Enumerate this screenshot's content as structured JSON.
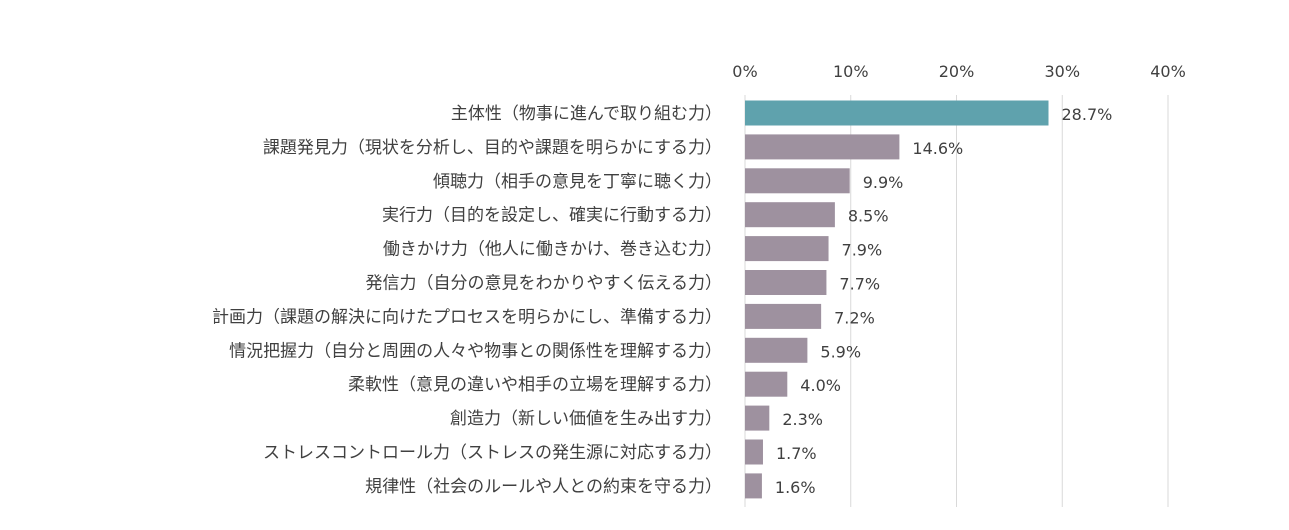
{
  "chart_data": {
    "type": "bar",
    "orientation": "horizontal",
    "title": "",
    "xlabel": "",
    "ylabel": "",
    "xlim": [
      0,
      40
    ],
    "ticks": [
      0,
      10,
      20,
      30,
      40
    ],
    "tick_suffix": "%",
    "grid": true,
    "axis_position": "top",
    "categories": [
      "主体性（物事に進んで取り組む力）",
      "課題発見力（現状を分析し、目的や課題を明らかにする力）",
      "傾聴力（相手の意見を丁寧に聴く力）",
      "実行力（目的を設定し、確実に行動する力）",
      "働きかけ力（他人に働きかけ、巻き込む力）",
      "発信力（自分の意見をわかりやすく伝える力）",
      "計画力（課題の解決に向けたプロセスを明らかにし、準備する力）",
      "情況把握力（自分と周囲の人々や物事との関係性を理解する力）",
      "柔軟性（意見の違いや相手の立場を理解する力）",
      "創造力（新しい価値を生み出す力）",
      "ストレスコントロール力（ストレスの発生源に対応する力）",
      "規律性（社会のルールや人との約束を守る力）"
    ],
    "values": [
      28.7,
      14.6,
      9.9,
      8.5,
      7.9,
      7.7,
      7.2,
      5.9,
      4.0,
      2.3,
      1.7,
      1.6
    ],
    "value_labels": [
      "28.7%",
      "14.6%",
      "9.9%",
      "8.5%",
      "7.9%",
      "7.7%",
      "7.2%",
      "5.9%",
      "4.0%",
      "2.3%",
      "1.7%",
      "1.6%"
    ],
    "colors": {
      "highlight": "#5fa2ad",
      "default": "#9e919f",
      "gridline": "#d9d9d9",
      "text": "#404040"
    }
  }
}
